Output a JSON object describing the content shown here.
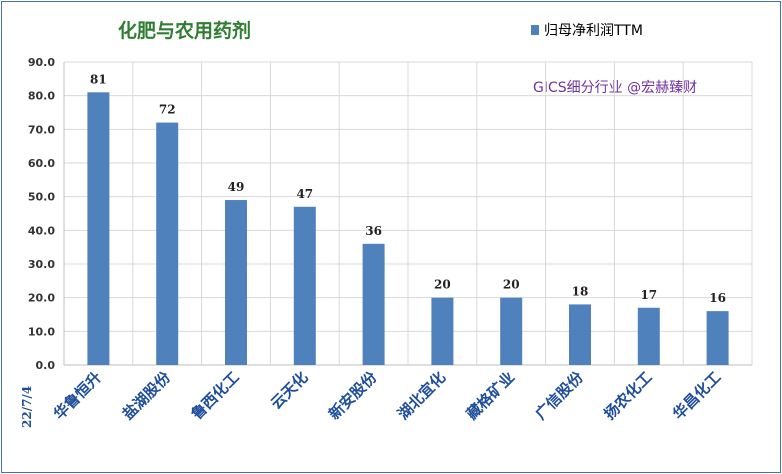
{
  "chart_data": {
    "type": "bar",
    "title": "化肥与农用药剂",
    "watermark": "GICS细分行业 @宏赫臻财",
    "date_label": "22/7/4",
    "categories": [
      "华鲁恒升",
      "盐湖股份",
      "鲁西化工",
      "云天化",
      "新安股份",
      "湖北宜化",
      "藏格矿业",
      "广信股份",
      "扬农化工",
      "华昌化工"
    ],
    "series": [
      {
        "name": "归母净利润TTM",
        "values": [
          81,
          72,
          49,
          47,
          36,
          20,
          20,
          18,
          17,
          16
        ]
      }
    ],
    "data_labels": [
      "81",
      "72",
      "49",
      "47",
      "36",
      "20",
      "20",
      "18",
      "17",
      "16"
    ],
    "yticks": [
      "0.0",
      "10.0",
      "20.0",
      "30.0",
      "40.0",
      "50.0",
      "60.0",
      "70.0",
      "80.0",
      "90.0"
    ],
    "ylim": [
      0,
      90
    ],
    "grid": true,
    "legend_position": "top-right",
    "colors": {
      "bar": "#4f81bd",
      "title": "#2e7d32",
      "watermark": "#7030a0",
      "date": "#1f4e9a",
      "grid": "#d9d9d9"
    }
  }
}
